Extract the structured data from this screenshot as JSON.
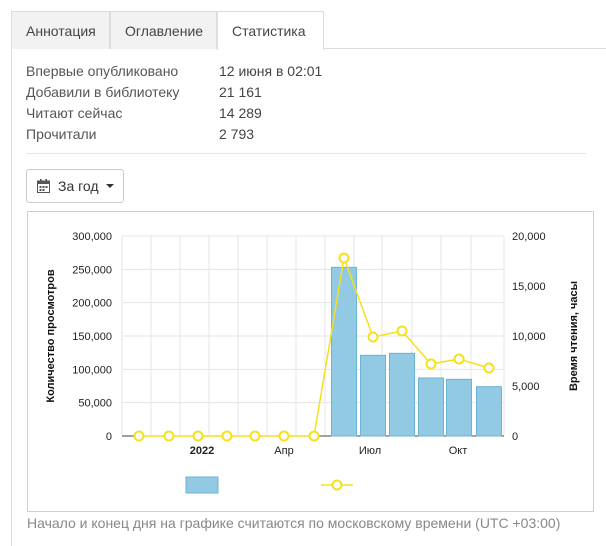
{
  "tabs": [
    {
      "label": "Аннотация",
      "active": false
    },
    {
      "label": "Оглавление",
      "active": false
    },
    {
      "label": "Статистика",
      "active": true
    }
  ],
  "stats": [
    {
      "label": "Впервые опубликовано",
      "value": "12 июня в 02:01"
    },
    {
      "label": "Добавили в библиотеку",
      "value": "21 161"
    },
    {
      "label": "Читают сейчас",
      "value": "14 289"
    },
    {
      "label": "Прочитали",
      "value": "2 793"
    }
  ],
  "period_button": {
    "label": "За год",
    "icon": "calendar-icon"
  },
  "colors": {
    "bar": "#92c9e3",
    "bar_stroke": "#6cb3d4",
    "line": "#f7e01b",
    "grid": "#e6e6e6"
  },
  "chart_data": {
    "type": "bar",
    "x_tick_labels": [
      "2022",
      "Апр",
      "Июл",
      "Окт"
    ],
    "ylabel": "Количество просмотров",
    "y2label": "Время чтения, часы",
    "ylim": [
      0,
      300000
    ],
    "y2lim": [
      0,
      20000
    ],
    "y_ticks": [
      "300,000",
      "250,000",
      "200,000",
      "150,000",
      "100,000",
      "50,000",
      "0"
    ],
    "y2_ticks": [
      "20,000",
      "15,000",
      "10,000",
      "5,000",
      "0"
    ],
    "grid": true,
    "series": [
      {
        "kind": "bar",
        "axis": "left",
        "values": [
          0,
          0,
          0,
          0,
          0,
          0,
          0,
          253000,
          121000,
          124000,
          87000,
          85000,
          74000
        ]
      },
      {
        "kind": "line",
        "axis": "right",
        "values": [
          0,
          0,
          0,
          0,
          0,
          0,
          0,
          17800,
          9900,
          10500,
          7200,
          7700,
          6800
        ]
      }
    ],
    "legend_position": "bottom"
  },
  "footnote": "Начало и конец дня на графике считаются по московскому времени (UTC +03:00)"
}
